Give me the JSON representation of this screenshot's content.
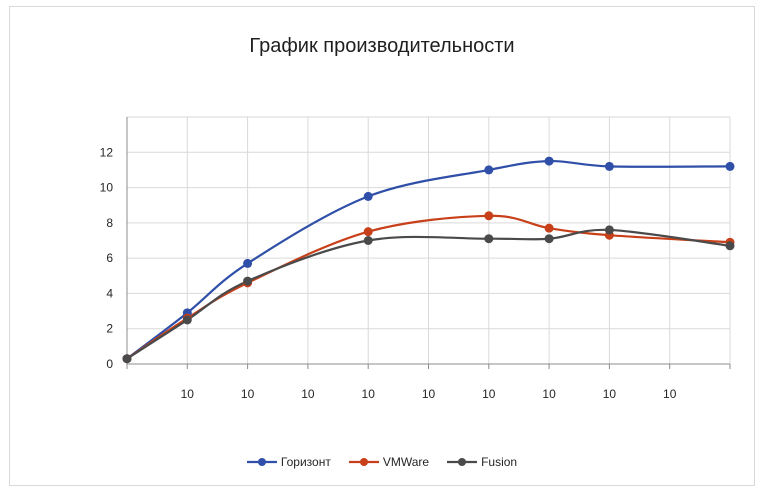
{
  "chart_data": {
    "type": "line",
    "title": "График производительности",
    "xlabel": "",
    "ylabel": "",
    "x_tick_labels": [
      "",
      "10",
      "10",
      "10",
      "10",
      "10",
      "10",
      "10",
      "10",
      "10",
      ""
    ],
    "y_ticks": [
      0,
      2,
      4,
      6,
      8,
      10,
      12
    ],
    "ylim": [
      0,
      14
    ],
    "grid": true,
    "legend_position": "bottom",
    "smooth": true,
    "series": [
      {
        "name": "Горизонт",
        "color": "#2f4fa8",
        "x": [
          0,
          1,
          2,
          4,
          6,
          7,
          8,
          10
        ],
        "values": [
          0.3,
          2.9,
          5.7,
          9.5,
          11.0,
          11.5,
          11.2,
          11.2
        ]
      },
      {
        "name": "VMWare",
        "color": "#c8401a",
        "x": [
          0,
          1,
          2,
          4,
          6,
          7,
          8,
          10
        ],
        "values": [
          0.3,
          2.6,
          4.6,
          7.5,
          8.4,
          7.7,
          7.3,
          6.9
        ]
      },
      {
        "name": "Fusion",
        "color": "#4a4a4a",
        "x": [
          0,
          1,
          2,
          4,
          6,
          7,
          8,
          10
        ],
        "values": [
          0.3,
          2.5,
          4.7,
          7.0,
          7.1,
          7.1,
          7.6,
          6.7
        ]
      }
    ]
  }
}
